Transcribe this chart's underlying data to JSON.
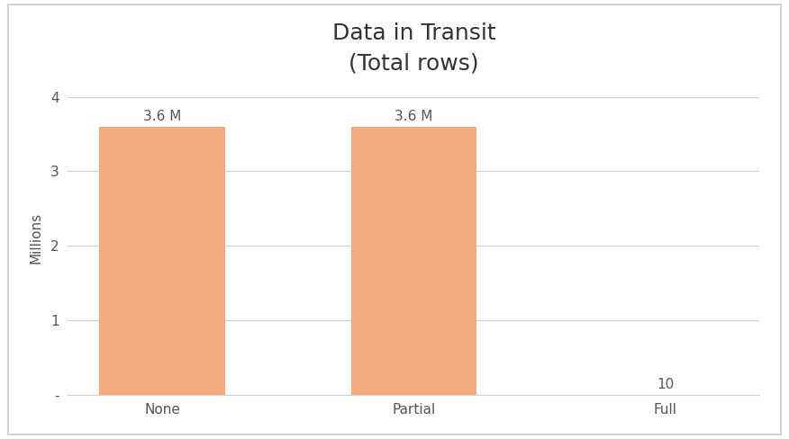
{
  "title": "Data in Transit",
  "subtitle": "(Total rows)",
  "categories": [
    "None",
    "Partial",
    "Full"
  ],
  "values": [
    3600000,
    3600000,
    10
  ],
  "bar_color": "#F5AA82",
  "bar_labels": [
    "3.6 M",
    "3.6 M",
    "10"
  ],
  "ylabel": "Millions",
  "ylim": [
    0,
    4200000
  ],
  "yticks": [
    0,
    1000000,
    2000000,
    3000000,
    4000000
  ],
  "ytick_labels": [
    "-",
    "1",
    "2",
    "3",
    "4"
  ],
  "background_color": "#ffffff",
  "title_fontsize": 18,
  "label_fontsize": 11,
  "tick_fontsize": 11,
  "bar_width": 0.5,
  "border_color": "#cccccc"
}
